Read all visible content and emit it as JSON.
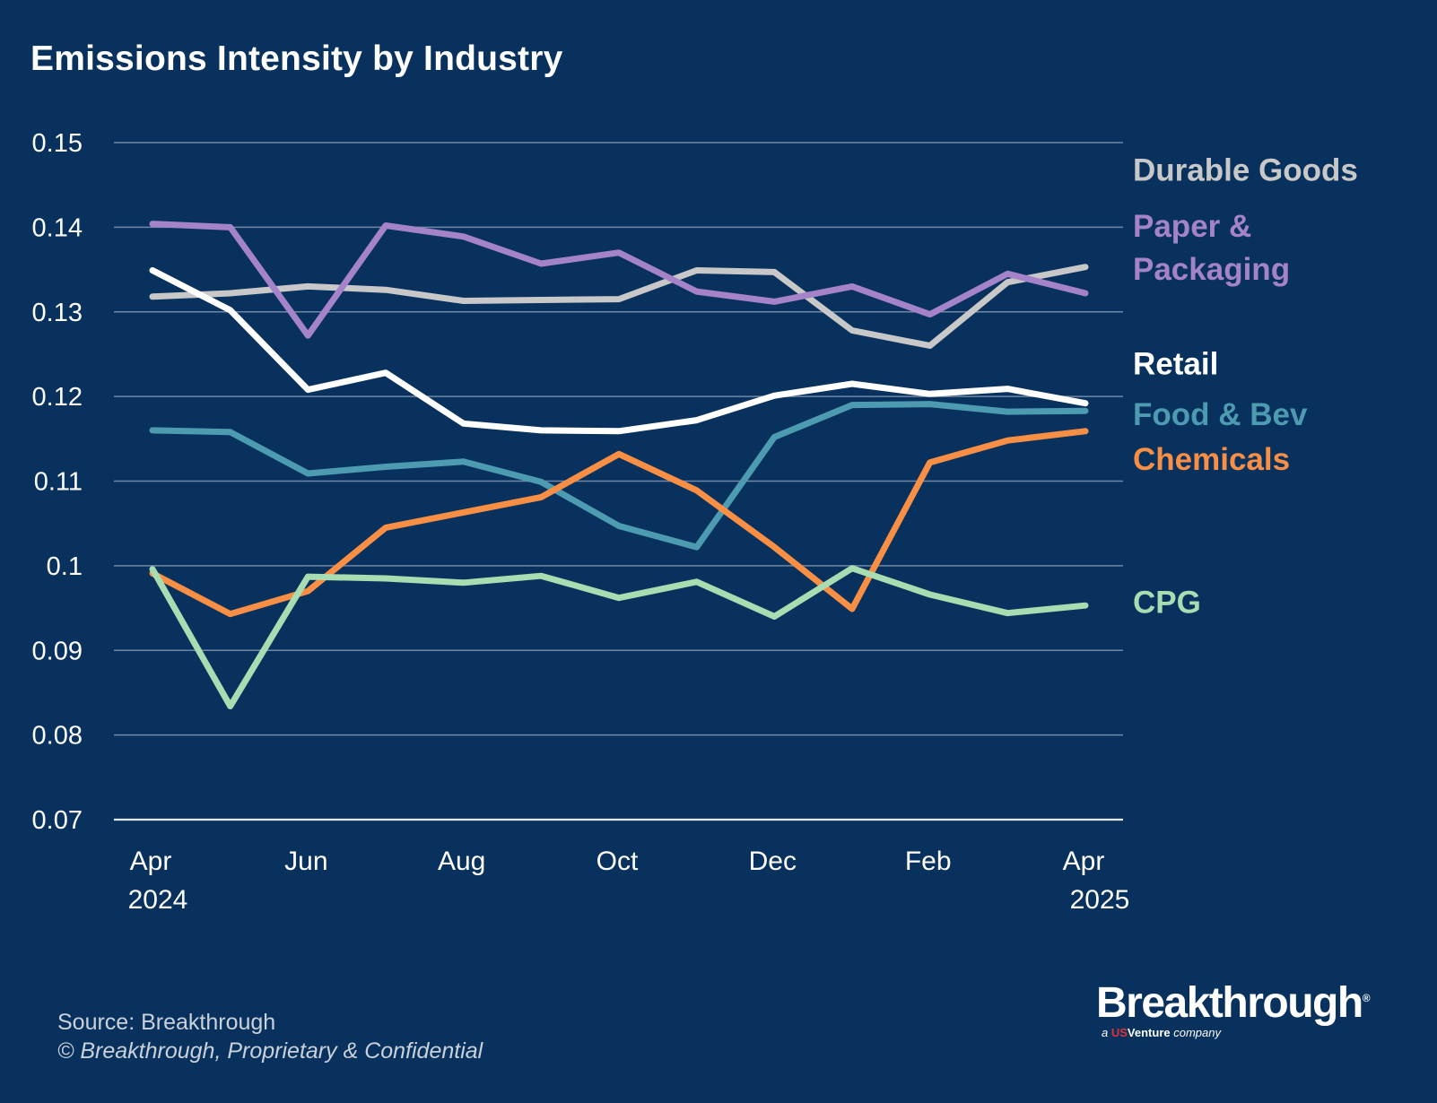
{
  "page": {
    "title": "Emissions Intensity by Industry",
    "source": "Source: Breakthrough",
    "copyright": "© Breakthrough, Proprietary & Confidential"
  },
  "logo": {
    "wordmark": "Breakthrough",
    "reg": "®",
    "tagline_prefix": "a",
    "tagline_us": "US",
    "tagline_venture": "Venture",
    "tagline_suffix": "company"
  },
  "chart_data": {
    "type": "line",
    "title": "Emissions Intensity by Industry",
    "xlabel": "",
    "ylabel": "",
    "ylim": [
      0.07,
      0.15
    ],
    "yticks": [
      0.15,
      0.14,
      0.13,
      0.12,
      0.11,
      0.1,
      0.09,
      0.08,
      0.07
    ],
    "ytick_labels": [
      "0.15",
      "0.14",
      "0.13",
      "0.12",
      "0.11",
      "0.1",
      "0.09",
      "0.08",
      "0.07"
    ],
    "x": [
      "Apr 2024",
      "May 2024",
      "Jun 2024",
      "Jul 2024",
      "Aug 2024",
      "Sep 2024",
      "Oct 2024",
      "Nov 2024",
      "Dec 2024",
      "Jan 2025",
      "Feb 2025",
      "Mar 2025",
      "Apr 2025"
    ],
    "xticks": [
      {
        "index": 0,
        "lines": [
          "Apr",
          "2024"
        ]
      },
      {
        "index": 2,
        "lines": [
          "Jun"
        ]
      },
      {
        "index": 4,
        "lines": [
          "Aug"
        ]
      },
      {
        "index": 6,
        "lines": [
          "Oct"
        ]
      },
      {
        "index": 8,
        "lines": [
          "Dec"
        ]
      },
      {
        "index": 10,
        "lines": [
          "Feb"
        ]
      },
      {
        "index": 12,
        "lines": [
          "Apr",
          "2025"
        ]
      }
    ],
    "grid": true,
    "legend": "right-of-plot, labels beside line ends",
    "series": [
      {
        "name": "Durable Goods",
        "color": "#c8c8c8",
        "label_lines": [
          "Durable Goods"
        ],
        "label_value": 0.1455,
        "values": [
          0.1318,
          0.1322,
          0.133,
          0.1326,
          0.1313,
          0.1314,
          0.1315,
          0.1349,
          0.1347,
          0.1278,
          0.126,
          0.1335,
          0.1353
        ]
      },
      {
        "name": "Paper & Packaging",
        "color": "#a583c9",
        "label_lines": [
          "Paper &",
          "Packaging"
        ],
        "label_value": 0.1389,
        "values": [
          0.1404,
          0.14,
          0.1272,
          0.1402,
          0.1389,
          0.1357,
          0.137,
          0.1324,
          0.1312,
          0.133,
          0.1297,
          0.1345,
          0.1322
        ]
      },
      {
        "name": "Retail",
        "color": "#ffffff",
        "label_lines": [
          "Retail"
        ],
        "label_value": 0.1226,
        "values": [
          0.1349,
          0.1302,
          0.1208,
          0.1228,
          0.1168,
          0.116,
          0.1159,
          0.1172,
          0.1201,
          0.1215,
          0.1203,
          0.1209,
          0.1192
        ]
      },
      {
        "name": "Food & Bev",
        "color": "#4c9bb0",
        "label_lines": [
          "Food & Bev"
        ],
        "label_value": 0.1166,
        "values": [
          0.116,
          0.1158,
          0.1109,
          0.1117,
          0.1123,
          0.1099,
          0.1047,
          0.1022,
          0.1152,
          0.119,
          0.1191,
          0.1182,
          0.1183
        ]
      },
      {
        "name": "Chemicals",
        "color": "#f98f45",
        "label_lines": [
          "Chemicals"
        ],
        "label_value": 0.1113,
        "values": [
          0.0991,
          0.0943,
          0.097,
          0.1045,
          0.1063,
          0.1081,
          0.1132,
          0.1089,
          0.1022,
          0.0949,
          0.1122,
          0.1148,
          0.1159
        ]
      },
      {
        "name": "CPG",
        "color": "#a8ddb1",
        "label_lines": [
          "CPG"
        ],
        "label_value": 0.0944,
        "values": [
          0.0996,
          0.0834,
          0.0987,
          0.0985,
          0.098,
          0.0988,
          0.0962,
          0.0981,
          0.094,
          0.0997,
          0.0966,
          0.0944,
          0.0953
        ]
      }
    ]
  }
}
